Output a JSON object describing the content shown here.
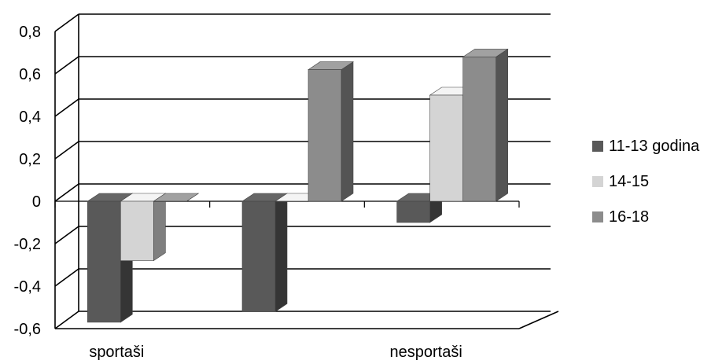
{
  "chart_data": {
    "type": "bar",
    "style": "3d-clustered-column",
    "categories": [
      "sportaši",
      "",
      "nesportaši"
    ],
    "series": [
      {
        "name": "11-13 godina",
        "values": [
          -0.57,
          -0.52,
          -0.1
        ],
        "color": "#595959"
      },
      {
        "name": "14-15",
        "values": [
          -0.28,
          0.0,
          0.5
        ],
        "color": "#d4d4d4"
      },
      {
        "name": "16-18",
        "values": [
          0.0,
          0.62,
          0.68
        ],
        "color": "#8c8c8c"
      }
    ],
    "ylim": [
      -0.6,
      0.8
    ],
    "yticks": [
      "0,8",
      "0,6",
      "0,4",
      "0,2",
      "0",
      "-0,2",
      "-0,4",
      "-0,6"
    ],
    "ytick_values": [
      0.8,
      0.6,
      0.4,
      0.2,
      0.0,
      -0.2,
      -0.4,
      -0.6
    ],
    "grid": true,
    "legend_position": "right",
    "title": "",
    "xlabel": "",
    "ylabel": ""
  }
}
